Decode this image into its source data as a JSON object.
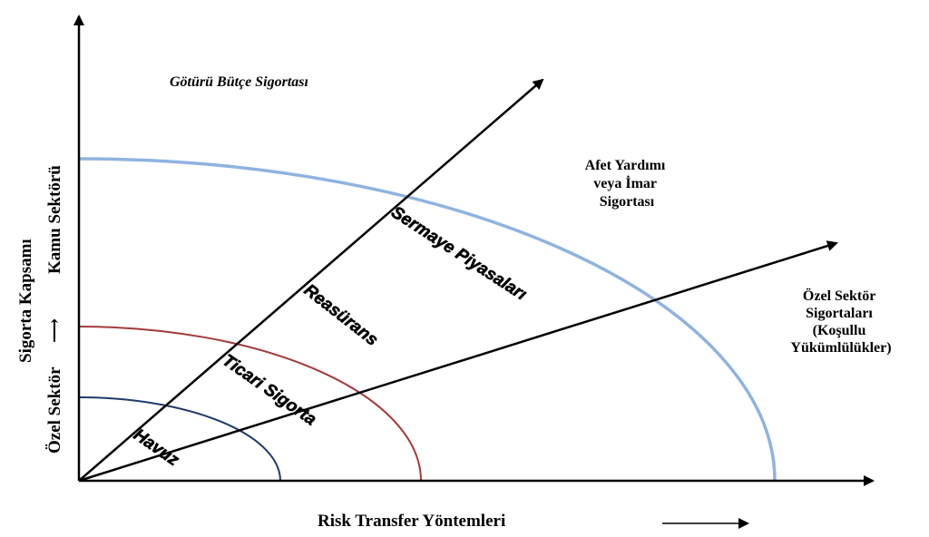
{
  "diagram": {
    "y_axis_label": {
      "bottom": "Özel Sektör",
      "top": "Kamu Sektörü",
      "title": "Sigorta Kapsamı"
    },
    "x_axis_label": "Risk Transfer Yöntemleri",
    "top_label": "Götürü Bütçe Sigortası",
    "region_disaster": [
      "Afet Yardımı",
      "veya İmar",
      "Sigortası"
    ],
    "region_private": [
      "Özel Sektör",
      "Sigortaları",
      "(Koşullu",
      "Yükümlülükler)"
    ],
    "bands": {
      "havuz": "Havuz",
      "ticari": "Ticari Sigorta",
      "reasurans": "Reasürans",
      "sermaye": "Sermaye Piyasaları"
    },
    "colors": {
      "inner_arc": "#1f3a6b",
      "middle_arc": "#a33a3a",
      "outer_arc": "#8fb3e0",
      "axes": "#000000"
    }
  }
}
